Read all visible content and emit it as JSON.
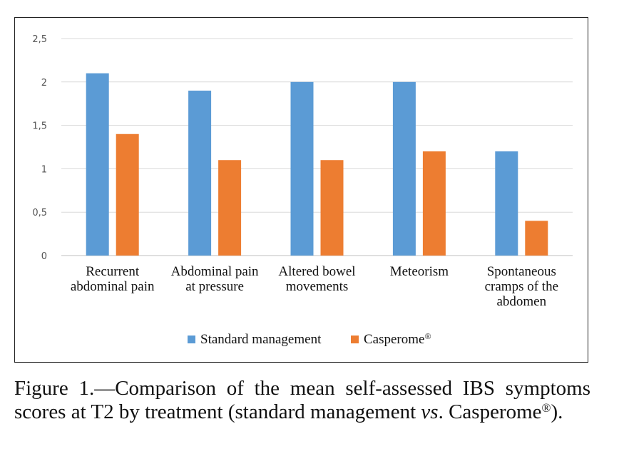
{
  "chart_data": {
    "type": "bar",
    "categories": [
      [
        "Recurrent",
        "abdominal pain"
      ],
      [
        "Abdominal pain",
        "at pressure"
      ],
      [
        "Altered bowel",
        "movements"
      ],
      [
        "Meteorism"
      ],
      [
        "Spontaneous",
        "cramps of the",
        "abdomen"
      ]
    ],
    "series": [
      {
        "name": "Standard management",
        "color": "#5b9bd5",
        "values": [
          2.1,
          1.9,
          2.0,
          2.0,
          1.2
        ]
      },
      {
        "name": "Casperome®",
        "color": "#ed7d31",
        "values": [
          1.4,
          1.1,
          1.1,
          1.2,
          0.4
        ]
      }
    ],
    "ylim": [
      0,
      2.5
    ],
    "yticks": [
      "0",
      "0,5",
      "1",
      "1,5",
      "2",
      "2,5"
    ],
    "grid": true,
    "legend": "bottom"
  },
  "caption": {
    "prefix": "Figure 1.—Comparison of the mean self-assessed IBS symptoms scores at T2 by treatment (standard management ",
    "vs": "vs",
    "middle": ". Casperome",
    "reg": "®",
    "suffix": ")."
  }
}
